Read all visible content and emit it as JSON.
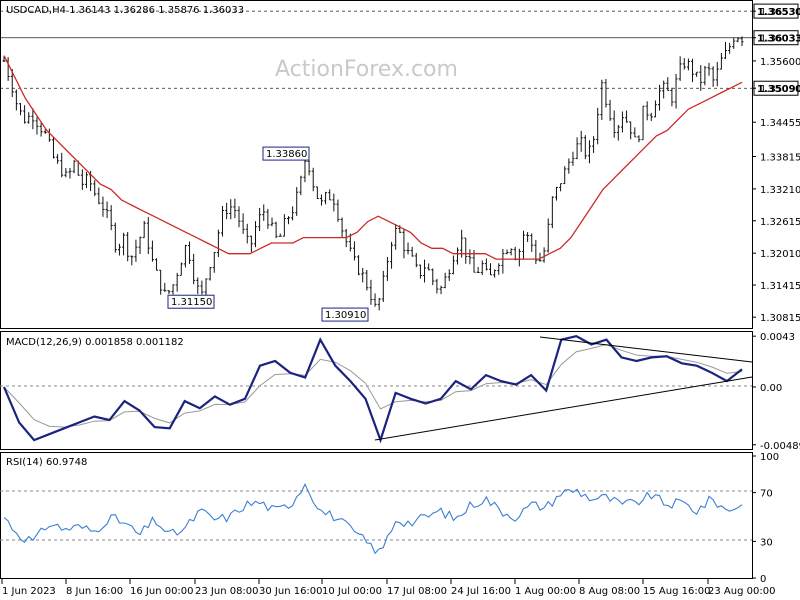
{
  "chart_data": [
    {
      "type": "candlestick",
      "symbol": "USDCAD",
      "timeframe": "H4",
      "header": "USDCAD,H4  1.36143 1.36286 1.35876 1.36033",
      "watermark": "ActionForex.com",
      "ohlc": {
        "open": 1.36143,
        "high": 1.36286,
        "low": 1.35876,
        "close": 1.36033
      },
      "ylim": [
        1.3065,
        1.367
      ],
      "y_ticks": [
        "1.36530",
        "1.36033",
        "1.35600",
        "1.35090",
        "1.34455",
        "1.33815",
        "1.33210",
        "1.32615",
        "1.32010",
        "1.31415",
        "1.30815"
      ],
      "y_tick_values": [
        1.3653,
        1.36033,
        1.356,
        1.3509,
        1.34455,
        1.33815,
        1.3321,
        1.32615,
        1.3201,
        1.31415,
        1.30815
      ],
      "horizontal_lines": [
        {
          "value": 1.3653,
          "label": "1.36530",
          "style": "dashed"
        },
        {
          "value": 1.36033,
          "label": "1.36033",
          "style": "solid"
        },
        {
          "value": 1.3509,
          "label": "1.35090",
          "style": "dashed"
        }
      ],
      "annotations": [
        {
          "label": "1.33860",
          "value": 1.3386
        },
        {
          "label": "1.31150",
          "value": 1.3115
        },
        {
          "label": "1.30910",
          "value": 1.3091
        }
      ],
      "close_path": [
        1.356,
        1.352,
        1.347,
        1.345,
        1.346,
        1.344,
        1.342,
        1.338,
        1.336,
        1.334,
        1.337,
        1.333,
        1.334,
        1.331,
        1.329,
        1.326,
        1.321,
        1.323,
        1.319,
        1.322,
        1.325,
        1.319,
        1.315,
        1.312,
        1.314,
        1.318,
        1.322,
        1.316,
        1.3115,
        1.317,
        1.321,
        1.327,
        1.329,
        1.328,
        1.324,
        1.321,
        1.326,
        1.328,
        1.325,
        1.322,
        1.326,
        1.328,
        1.332,
        1.3386,
        1.333,
        1.329,
        1.331,
        1.33,
        1.325,
        1.321,
        1.318,
        1.316,
        1.313,
        1.3091,
        1.315,
        1.322,
        1.325,
        1.321,
        1.319,
        1.316,
        1.318,
        1.315,
        1.313,
        1.316,
        1.32,
        1.323,
        1.319,
        1.316,
        1.318,
        1.315,
        1.318,
        1.32,
        1.322,
        1.319,
        1.324,
        1.322,
        1.318,
        1.321,
        1.33,
        1.333,
        1.336,
        1.339,
        1.341,
        1.338,
        1.342,
        1.352,
        1.347,
        1.343,
        1.346,
        1.344,
        1.34,
        1.347,
        1.346,
        1.35,
        1.351,
        1.349,
        1.354,
        1.356,
        1.354,
        1.352,
        1.355,
        1.352,
        1.356,
        1.358,
        1.361,
        1.3603
      ],
      "ma_path": [
        1.357,
        1.353,
        1.349,
        1.346,
        1.343,
        1.341,
        1.339,
        1.337,
        1.335,
        1.333,
        1.332,
        1.33,
        1.329,
        1.328,
        1.327,
        1.326,
        1.325,
        1.324,
        1.323,
        1.322,
        1.321,
        1.32,
        1.32,
        1.32,
        1.321,
        1.322,
        1.322,
        1.322,
        1.323,
        1.323,
        1.323,
        1.323,
        1.323,
        1.324,
        1.326,
        1.327,
        1.326,
        1.325,
        1.324,
        1.322,
        1.321,
        1.321,
        1.32,
        1.32,
        1.32,
        1.32,
        1.319,
        1.319,
        1.319,
        1.319,
        1.319,
        1.32,
        1.321,
        1.323,
        1.326,
        1.329,
        1.332,
        1.334,
        1.336,
        1.338,
        1.34,
        1.342,
        1.343,
        1.345,
        1.347,
        1.348,
        1.349,
        1.35,
        1.351,
        1.352
      ]
    },
    {
      "type": "line",
      "title": "MACD(12,26,9) 0.001858 0.001182",
      "y_ticks": [
        "0.0043",
        "0.00",
        "-0.004895"
      ],
      "ylim": [
        -0.005,
        0.0044
      ],
      "series": [
        {
          "name": "MACD",
          "values": [
            -0.0,
            -0.003,
            -0.0045,
            -0.004,
            -0.0035,
            -0.003,
            -0.0025,
            -0.0028,
            -0.0012,
            -0.002,
            -0.0034,
            -0.0035,
            -0.0012,
            -0.0018,
            -0.0008,
            -0.0015,
            -0.001,
            0.0018,
            0.0022,
            0.0012,
            0.0008,
            0.004,
            0.0018,
            0.0005,
            -0.001,
            -0.0045,
            -0.0005,
            -0.001,
            -0.0014,
            -0.001,
            0.0005,
            -0.0002,
            0.001,
            0.0005,
            0.0002,
            0.001,
            -0.0003,
            0.004,
            0.0043,
            0.0036,
            0.004,
            0.0025,
            0.0022,
            0.0025,
            0.0026,
            0.002,
            0.0018,
            0.0012,
            0.0005,
            0.0015
          ]
        }
      ],
      "trendlines": 2
    },
    {
      "type": "line",
      "title": "RSI(14) 60.9748",
      "y_ticks": [
        "100",
        "70",
        "30",
        "0"
      ],
      "ylim": [
        0,
        100
      ],
      "series": [
        {
          "name": "RSI",
          "values": [
            50,
            35,
            30,
            45,
            40,
            42,
            38,
            50,
            45,
            35,
            48,
            35,
            40,
            55,
            48,
            50,
            60,
            62,
            55,
            60,
            78,
            55,
            50,
            40,
            30,
            20,
            48,
            45,
            50,
            55,
            48,
            60,
            65,
            55,
            50,
            60,
            58,
            70,
            72,
            65,
            66,
            60,
            62,
            68,
            60,
            62,
            55,
            65,
            55,
            61
          ]
        }
      ]
    }
  ],
  "x_ticks": [
    "1 Jun 2023",
    "8 Jun 16:00",
    "16 Jun 00:00",
    "23 Jun 08:00",
    "30 Jun 16:00",
    "10 Jul 00:00",
    "17 Jul 08:00",
    "24 Jul 16:00",
    "1 Aug 00:00",
    "8 Aug 08:00",
    "15 Aug 16:00",
    "23 Aug 00:00"
  ],
  "colors": {
    "candle": "#111111",
    "ma": "#cc2a2a",
    "macd": "#1a237e",
    "signal": "#999999",
    "trend": "#000000",
    "grid": "#999999"
  }
}
